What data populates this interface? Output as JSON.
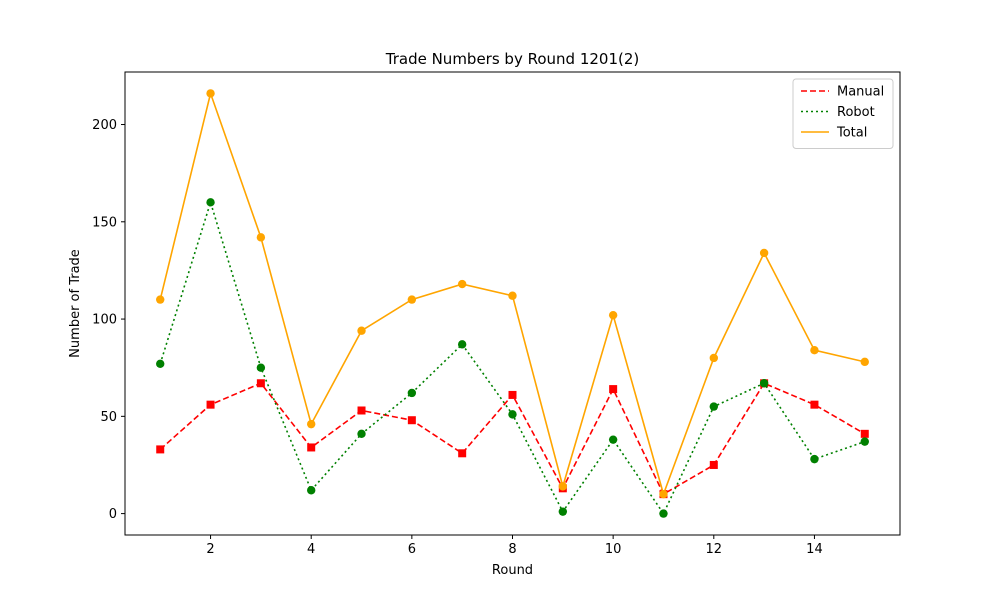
{
  "chart_data": {
    "type": "line",
    "title": "Trade Numbers by Round 1201(2)",
    "xlabel": "Round",
    "ylabel": "Number of Trade",
    "x": [
      1,
      2,
      3,
      4,
      5,
      6,
      7,
      8,
      9,
      10,
      11,
      12,
      13,
      14,
      15
    ],
    "xlim": [
      0.3,
      15.7
    ],
    "ylim": [
      -11,
      227
    ],
    "xticks": [
      2,
      4,
      6,
      8,
      10,
      12,
      14
    ],
    "yticks": [
      0,
      50,
      100,
      150,
      200
    ],
    "grid": false,
    "legend_position": "top-right",
    "series": [
      {
        "name": "Manual",
        "color": "#ff0000",
        "line_style": "dashed",
        "marker": "square",
        "values": [
          33,
          56,
          67,
          34,
          53,
          48,
          31,
          61,
          13,
          64,
          10,
          25,
          67,
          56,
          41
        ]
      },
      {
        "name": "Robot",
        "color": "#008000",
        "line_style": "dotted",
        "marker": "circle",
        "values": [
          77,
          160,
          75,
          12,
          41,
          62,
          87,
          51,
          1,
          38,
          0,
          55,
          67,
          28,
          37
        ]
      },
      {
        "name": "Total",
        "color": "#ffa500",
        "line_style": "solid",
        "marker": "circle",
        "values": [
          110,
          216,
          142,
          46,
          94,
          110,
          118,
          112,
          14,
          102,
          10,
          80,
          134,
          84,
          78
        ]
      }
    ]
  }
}
